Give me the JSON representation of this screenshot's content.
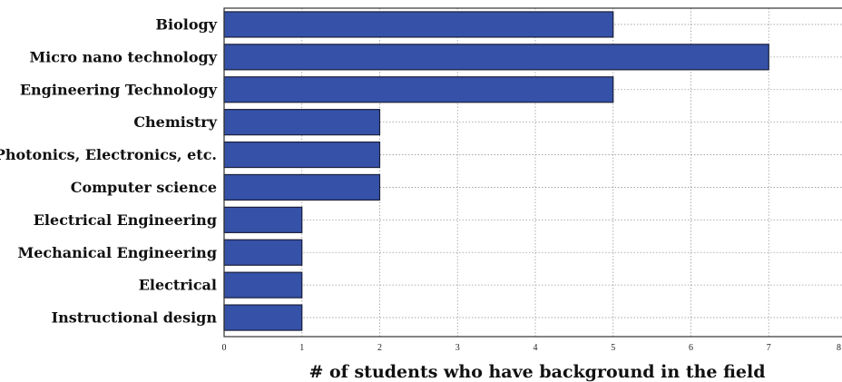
{
  "chart_data": {
    "type": "bar",
    "orientation": "horizontal",
    "categories": [
      "Biology",
      "Micro nano technology",
      "Engineering Technology",
      "Chemistry",
      "Photonics, Electronics, etc.",
      "Computer science",
      "Electrical Engineering",
      "Mechanical Engineering",
      "Electrical",
      "Instructional design"
    ],
    "values": [
      5,
      7,
      5,
      2,
      2,
      2,
      1,
      1,
      1,
      1
    ],
    "xlabel": "# of students who have background in the field",
    "ylabel": "",
    "xlim": [
      0,
      8
    ],
    "xticks": [
      "0",
      "1",
      "2",
      "3",
      "4",
      "5",
      "6",
      "7",
      "8"
    ],
    "grid": true,
    "legend": "none",
    "bar_color": "#3552a8"
  }
}
